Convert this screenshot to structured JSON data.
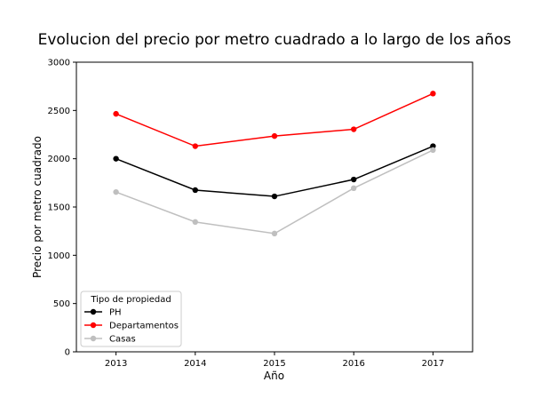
{
  "chart_data": {
    "type": "line",
    "title": "Evolucion del precio por metro cuadrado a lo largo de los años",
    "xlabel": "Año",
    "ylabel": "Precio por metro cuadrado",
    "categories": [
      "2013",
      "2014",
      "2015",
      "2016",
      "2017"
    ],
    "ylim": [
      0,
      3000
    ],
    "yticks": [
      0,
      500,
      1000,
      1500,
      2000,
      2500,
      3000
    ],
    "grid": false,
    "legend": {
      "title": "Tipo de propiedad",
      "placement": "lower-left"
    },
    "series": [
      {
        "name": "PH",
        "color": "#000000",
        "values": [
          2000,
          1675,
          1610,
          1785,
          2130
        ]
      },
      {
        "name": "Departamentos",
        "color": "#ff0000",
        "values": [
          2465,
          2130,
          2235,
          2305,
          2675
        ]
      },
      {
        "name": "Casas",
        "color": "#bfbfbf",
        "values": [
          1655,
          1345,
          1225,
          1695,
          2090
        ]
      }
    ]
  }
}
